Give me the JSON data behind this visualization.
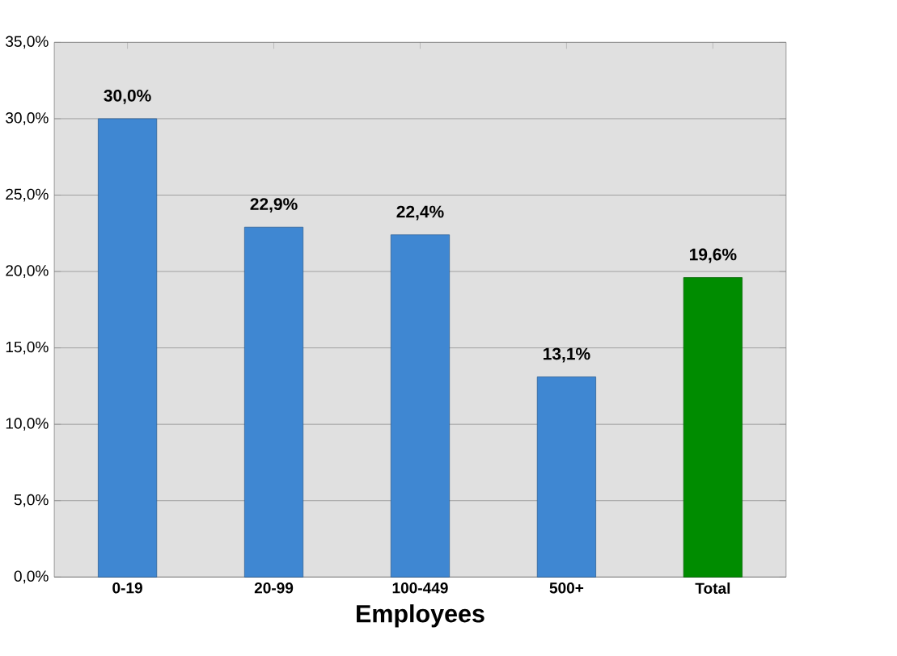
{
  "chart_data": {
    "type": "bar",
    "xlabel": "Employees",
    "categories": [
      "0-19",
      "20-99",
      "100-449",
      "500+",
      "Total"
    ],
    "values": [
      30.0,
      22.9,
      22.4,
      13.1,
      19.6
    ],
    "colors": [
      "#3f87d2",
      "#3f87d2",
      "#3f87d2",
      "#3f87d2",
      "#008c00"
    ],
    "value_labels": [
      "30,0%",
      "22,9%",
      "22,4%",
      "13,1%",
      "19,6%"
    ],
    "ylim": [
      0,
      35
    ],
    "yticks": [
      {
        "value": 0,
        "label": "0,0%"
      },
      {
        "value": 5,
        "label": "5,0%"
      },
      {
        "value": 10,
        "label": "10,0%"
      },
      {
        "value": 15,
        "label": "15,0%"
      },
      {
        "value": 20,
        "label": "20,0%"
      },
      {
        "value": 25,
        "label": "25,0%"
      },
      {
        "value": 30,
        "label": "30,0%"
      },
      {
        "value": 35,
        "label": "35,0%"
      }
    ],
    "grid": "y"
  }
}
